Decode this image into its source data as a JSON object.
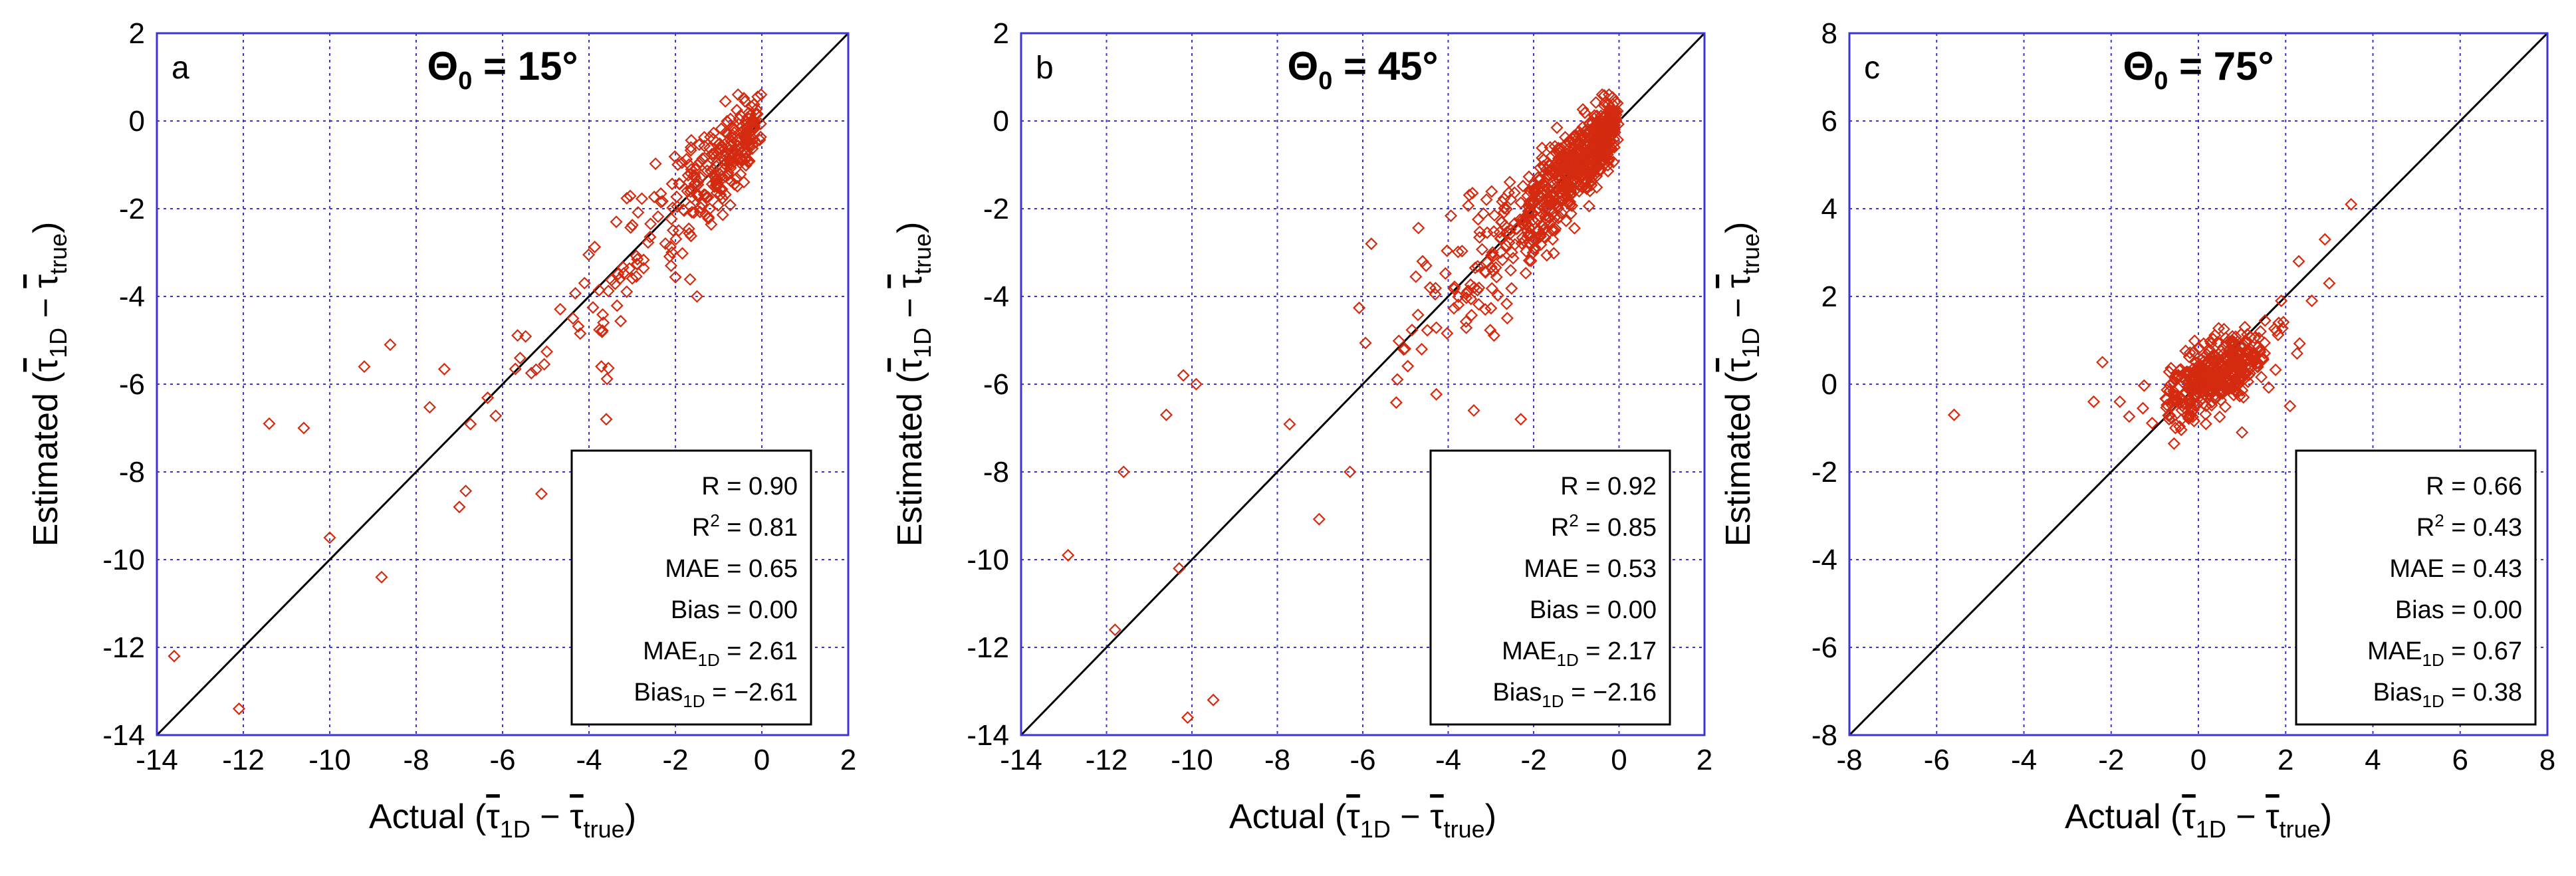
{
  "chart_data": [
    {
      "type": "scatter",
      "panel": "a",
      "title_symbol": "Θ",
      "title_sub": "0",
      "title_value": " = 15°",
      "xlabel_pre": "Actual (",
      "ylabel_pre": "Estimated (",
      "label_t1": "τ",
      "label_s1": "1D",
      "label_minus": " − ",
      "label_t2": "τ",
      "label_s2": "true",
      "label_close": ")",
      "xlim": [
        -14,
        2
      ],
      "ylim": [
        -14,
        2
      ],
      "xticks": [
        -14,
        -12,
        -10,
        -8,
        -6,
        -4,
        -2,
        0,
        2
      ],
      "yticks": [
        -14,
        -12,
        -10,
        -8,
        -6,
        -4,
        -2,
        0,
        2
      ],
      "xtick_labels": [
        "-14",
        "-12",
        "-10",
        "-8",
        "-6",
        "-4",
        "-2",
        "0",
        "2"
      ],
      "ytick_labels": [
        "-14",
        "-12",
        "-10",
        "-8",
        "-6",
        "-4",
        "-2",
        "0",
        "2"
      ],
      "stats": [
        {
          "label": "R",
          "sup": "",
          "sub": "",
          "value": " = 0.90"
        },
        {
          "label": "R",
          "sup": "2",
          "sub": "",
          "value": " = 0.81"
        },
        {
          "label": "MAE",
          "sup": "",
          "sub": "",
          "value": " = 0.65"
        },
        {
          "label": "Bias",
          "sup": "",
          "sub": "",
          "value": " = 0.00"
        },
        {
          "label": "MAE",
          "sup": "",
          "sub": "1D",
          "value": " = 2.61"
        },
        {
          "label": "Bias",
          "sup": "",
          "sub": "1D",
          "value": " = −2.61"
        }
      ],
      "scatter": {
        "n": 300,
        "scale": 2.6,
        "shape": 1.1,
        "ratio": 1.0,
        "noise": 0.35,
        "noise_rel": 0.18,
        "seed": 11
      },
      "points": [
        [
          -13.6,
          -12.2
        ],
        [
          -12.1,
          -13.4
        ],
        [
          -11.4,
          -6.9
        ],
        [
          -10.6,
          -7.0
        ],
        [
          -10.0,
          -9.5
        ],
        [
          -8.8,
          -10.4
        ],
        [
          -7.0,
          -8.8
        ],
        [
          -5.1,
          -8.5
        ],
        [
          -3.6,
          -6.8
        ],
        [
          -9.2,
          -5.6
        ],
        [
          -8.6,
          -5.1
        ],
        [
          -2.1,
          -3.3
        ],
        [
          -1.5,
          -4.0
        ]
      ]
    },
    {
      "type": "scatter",
      "panel": "b",
      "title_symbol": "Θ",
      "title_sub": "0",
      "title_value": " = 45°",
      "xlabel_pre": "Actual (",
      "ylabel_pre": "Estimated (",
      "label_t1": "τ",
      "label_s1": "1D",
      "label_minus": " − ",
      "label_t2": "τ",
      "label_s2": "true",
      "label_close": ")",
      "xlim": [
        -14,
        2
      ],
      "ylim": [
        -14,
        2
      ],
      "xticks": [
        -14,
        -12,
        -10,
        -8,
        -6,
        -4,
        -2,
        0,
        2
      ],
      "yticks": [
        -14,
        -12,
        -10,
        -8,
        -6,
        -4,
        -2,
        0,
        2
      ],
      "xtick_labels": [
        "-14",
        "-12",
        "-10",
        "-8",
        "-6",
        "-4",
        "-2",
        "0",
        "2"
      ],
      "ytick_labels": [
        "-14",
        "-12",
        "-10",
        "-8",
        "-6",
        "-4",
        "-2",
        "0",
        "2"
      ],
      "stats": [
        {
          "label": "R",
          "sup": "",
          "sub": "",
          "value": " = 0.92"
        },
        {
          "label": "R",
          "sup": "2",
          "sub": "",
          "value": " = 0.85"
        },
        {
          "label": "MAE",
          "sup": "",
          "sub": "",
          "value": " = 0.53"
        },
        {
          "label": "Bias",
          "sup": "",
          "sub": "",
          "value": " = 0.00"
        },
        {
          "label": "MAE",
          "sup": "",
          "sub": "1D",
          "value": " = 2.17"
        },
        {
          "label": "Bias",
          "sup": "",
          "sub": "1D",
          "value": " = −2.16"
        }
      ],
      "scatter": {
        "n": 700,
        "scale": 2.2,
        "shape": 1.0,
        "ratio": 1.0,
        "noise": 0.3,
        "noise_rel": 0.16,
        "seed": 29
      },
      "points": [
        [
          -12.9,
          -9.9
        ],
        [
          -11.8,
          -11.6
        ],
        [
          -10.1,
          -13.6
        ],
        [
          -9.5,
          -13.2
        ],
        [
          -10.3,
          -10.2
        ],
        [
          -11.6,
          -8.0
        ],
        [
          -10.6,
          -6.7
        ],
        [
          -9.9,
          -6.0
        ],
        [
          -10.2,
          -5.8
        ],
        [
          -6.3,
          -8.0
        ],
        [
          -3.4,
          -6.6
        ],
        [
          -2.3,
          -6.8
        ],
        [
          -5.8,
          -2.8
        ],
        [
          -4.6,
          -3.2
        ]
      ]
    },
    {
      "type": "scatter",
      "panel": "c",
      "title_symbol": "Θ",
      "title_sub": "0",
      "title_value": " = 75°",
      "xlabel_pre": "Actual (",
      "ylabel_pre": "Estimated (",
      "label_t1": "τ",
      "label_s1": "1D",
      "label_minus": " − ",
      "label_t2": "τ",
      "label_s2": "true",
      "label_close": ")",
      "xlim": [
        -8,
        8
      ],
      "ylim": [
        -8,
        8
      ],
      "xticks": [
        -8,
        -6,
        -4,
        -2,
        0,
        2,
        4,
        6,
        8
      ],
      "yticks": [
        -8,
        -6,
        -4,
        -2,
        0,
        2,
        4,
        6,
        8
      ],
      "xtick_labels": [
        "-8",
        "-6",
        "-4",
        "-2",
        "0",
        "2",
        "4",
        "6",
        "8"
      ],
      "ytick_labels": [
        "-8",
        "-6",
        "-4",
        "-2",
        "0",
        "2",
        "4",
        "6",
        "8"
      ],
      "stats": [
        {
          "label": "R",
          "sup": "",
          "sub": "",
          "value": " = 0.66"
        },
        {
          "label": "R",
          "sup": "2",
          "sub": "",
          "value": " = 0.43"
        },
        {
          "label": "MAE",
          "sup": "",
          "sub": "",
          "value": " = 0.43"
        },
        {
          "label": "Bias",
          "sup": "",
          "sub": "",
          "value": " = 0.00"
        },
        {
          "label": "MAE",
          "sup": "",
          "sub": "1D",
          "value": " = 0.67"
        },
        {
          "label": "Bias",
          "sup": "",
          "sub": "1D",
          "value": " = 0.38"
        }
      ],
      "scatter": {
        "n": 450,
        "mean": 0.4,
        "sd": 0.6,
        "slope": 0.45,
        "noise": 0.35,
        "seed": 47
      },
      "points": [
        [
          -5.6,
          -0.7
        ],
        [
          -2.4,
          -0.4
        ],
        [
          -2.2,
          0.5
        ],
        [
          -1.8,
          -0.4
        ],
        [
          3.5,
          4.1
        ],
        [
          2.9,
          3.3
        ],
        [
          3.0,
          2.3
        ],
        [
          2.6,
          1.9
        ],
        [
          1.9,
          1.9
        ],
        [
          2.3,
          2.8
        ],
        [
          1.0,
          -1.1
        ],
        [
          2.1,
          -0.5
        ]
      ]
    }
  ]
}
